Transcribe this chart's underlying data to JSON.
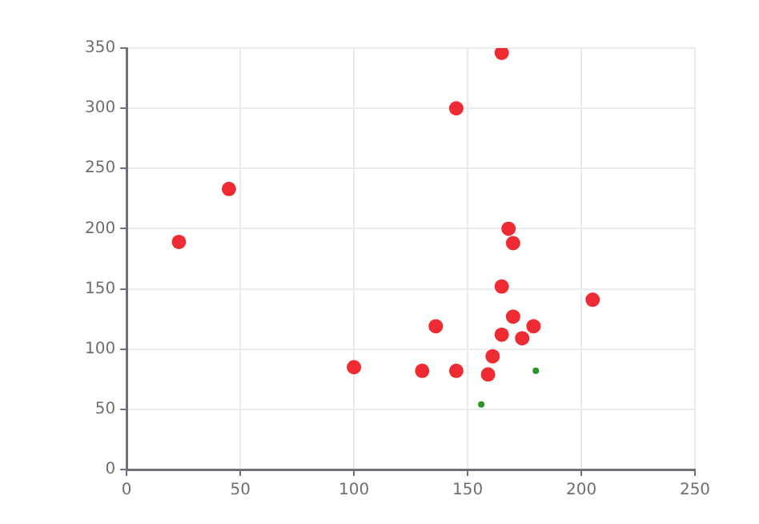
{
  "chart_data": {
    "type": "scatter",
    "xlim": [
      0,
      250
    ],
    "ylim": [
      0,
      350
    ],
    "xticks": [
      0,
      50,
      100,
      150,
      200,
      250
    ],
    "yticks": [
      0,
      50,
      100,
      150,
      200,
      250,
      300,
      350
    ],
    "grid": true,
    "legend": false,
    "marker": "circle",
    "series": [
      {
        "color": "#ee2b33",
        "x": [
          23,
          45,
          100,
          165,
          145,
          168,
          170,
          165,
          205,
          170,
          136,
          179,
          165,
          174,
          161,
          130,
          145,
          159
        ],
        "values": [
          189,
          233,
          85,
          346,
          300,
          200,
          188,
          152,
          141,
          127,
          119,
          119,
          112,
          109,
          94,
          82,
          82,
          79
        ]
      },
      {
        "color": "#2a962a",
        "x": [
          180,
          156
        ],
        "values": [
          82,
          54
        ]
      }
    ]
  }
}
